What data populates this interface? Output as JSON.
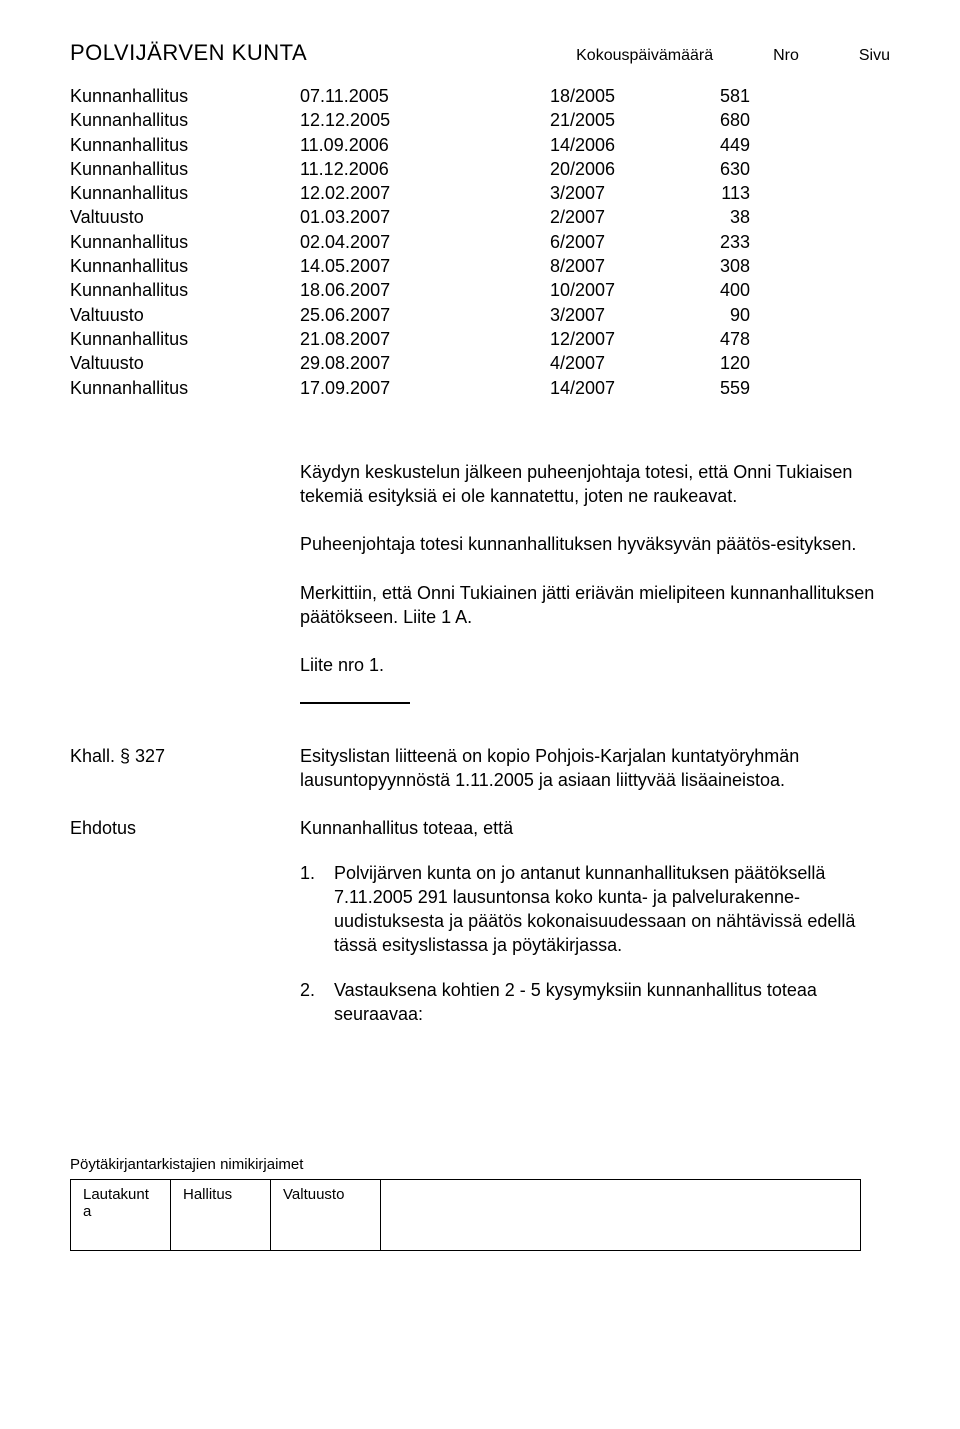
{
  "header": {
    "org": "POLVIJÄRVEN KUNTA",
    "col_date": "Kokouspäivämäärä",
    "col_nro": "Nro",
    "col_sivu": "Sivu"
  },
  "meetings": [
    {
      "body": "Kunnanhallitus",
      "date": "07.11.2005",
      "nro": "18/2005",
      "sivu": "581"
    },
    {
      "body": "Kunnanhallitus",
      "date": "12.12.2005",
      "nro": "21/2005",
      "sivu": "680"
    },
    {
      "body": "Kunnanhallitus",
      "date": "11.09.2006",
      "nro": "14/2006",
      "sivu": "449"
    },
    {
      "body": "Kunnanhallitus",
      "date": "11.12.2006",
      "nro": "20/2006",
      "sivu": "630"
    },
    {
      "body": "Kunnanhallitus",
      "date": "12.02.2007",
      "nro": "3/2007",
      "sivu": "113"
    },
    {
      "body": "Valtuusto",
      "date": "01.03.2007",
      "nro": "2/2007",
      "sivu": "38"
    },
    {
      "body": "Kunnanhallitus",
      "date": "02.04.2007",
      "nro": "6/2007",
      "sivu": "233"
    },
    {
      "body": "Kunnanhallitus",
      "date": "14.05.2007",
      "nro": "8/2007",
      "sivu": "308"
    },
    {
      "body": "Kunnanhallitus",
      "date": "18.06.2007",
      "nro": "10/2007",
      "sivu": "400"
    },
    {
      "body": "Valtuusto",
      "date": "25.06.2007",
      "nro": "3/2007",
      "sivu": "90"
    },
    {
      "body": "Kunnanhallitus",
      "date": "21.08.2007",
      "nro": "12/2007",
      "sivu": "478"
    },
    {
      "body": "Valtuusto",
      "date": "29.08.2007",
      "nro": "4/2007",
      "sivu": "120"
    },
    {
      "body": "Kunnanhallitus",
      "date": "17.09.2007",
      "nro": "14/2007",
      "sivu": "559"
    }
  ],
  "paragraphs": {
    "p1": "Käydyn keskustelun jälkeen puheenjohtaja totesi, että Onni Tukiaisen tekemiä esityksiä ei ole kannatettu, joten ne raukeavat.",
    "p2": "Puheenjohtaja totesi kunnanhallituksen hyväksyvän päätös-esityksen.",
    "p3": "Merkittiin, että Onni Tukiainen jätti eriävän mielipiteen kunnanhallituksen päätökseen. Liite 1 A.",
    "p4": "Liite nro 1."
  },
  "khall": {
    "label": "Khall. § 327",
    "intro": "Esityslistan liitteenä on kopio Pohjois-Karjalan kuntatyöryhmän lausuntopyynnöstä 1.11.2005 ja asiaan liittyvää lisäaineistoa."
  },
  "ehdotus": {
    "label": "Ehdotus",
    "lead": "Kunnanhallitus toteaa, että",
    "items": [
      {
        "n": "1.",
        "t": "Polvijärven kunta on jo antanut kunnanhallituksen päätöksellä 7.11.2005 291 lausuntonsa koko kunta- ja palvelurakenne-uudistuksesta ja päätös kokonaisuudessaan on nähtävissä edellä tässä esityslistassa ja pöytäkirjassa."
      },
      {
        "n": "2.",
        "t": "Vastauksena kohtien 2 - 5 kysymyksiin kunnanhallitus toteaa seuraavaa:"
      }
    ]
  },
  "footer": {
    "label": "Pöytäkirjantarkistajien nimikirjaimet",
    "cols": {
      "c1a": "Lautakunt",
      "c1b": "a",
      "c2": "Hallitus",
      "c3": "Valtuusto"
    }
  }
}
